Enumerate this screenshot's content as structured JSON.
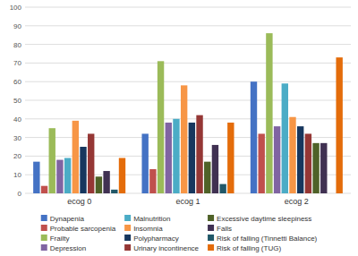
{
  "chart_data": {
    "type": "bar",
    "categories": [
      "ecog 0",
      "ecog 1",
      "ecog 2"
    ],
    "series": [
      {
        "name": "Dynapenia",
        "color": "#4472c4",
        "values": [
          17,
          32,
          60
        ]
      },
      {
        "name": "Probable sarcopenia",
        "color": "#c0504d",
        "values": [
          4,
          13,
          32
        ]
      },
      {
        "name": "Frailty",
        "color": "#9bbb59",
        "values": [
          35,
          71,
          86
        ]
      },
      {
        "name": "Depression",
        "color": "#8064a2",
        "values": [
          18,
          38,
          36
        ]
      },
      {
        "name": "Malnutrition",
        "color": "#4bacc6",
        "values": [
          19,
          40,
          59
        ]
      },
      {
        "name": "Insomnia",
        "color": "#f79646",
        "values": [
          39,
          58,
          41
        ]
      },
      {
        "name": "Polypharmacy",
        "color": "#17375e",
        "values": [
          25,
          38,
          36
        ]
      },
      {
        "name": "Urinary incontinence",
        "color": "#953735",
        "values": [
          32,
          42,
          32
        ]
      },
      {
        "name": "Excessive daytime sleepiness",
        "color": "#4f6228",
        "values": [
          9,
          17,
          27
        ]
      },
      {
        "name": "Falls",
        "color": "#403152",
        "values": [
          12,
          26,
          27
        ]
      },
      {
        "name": "Risk of falling (Tinnetti Balance)",
        "color": "#215868",
        "values": [
          2,
          5,
          0
        ]
      },
      {
        "name": "Risk of falling (TUG)",
        "color": "#e46c0a",
        "values": [
          19,
          38,
          73
        ]
      }
    ],
    "ylim": [
      0,
      100
    ],
    "yticks": [
      0,
      10,
      20,
      30,
      40,
      50,
      60,
      70,
      80,
      90,
      100
    ],
    "grid": true,
    "legend": "bottom"
  }
}
